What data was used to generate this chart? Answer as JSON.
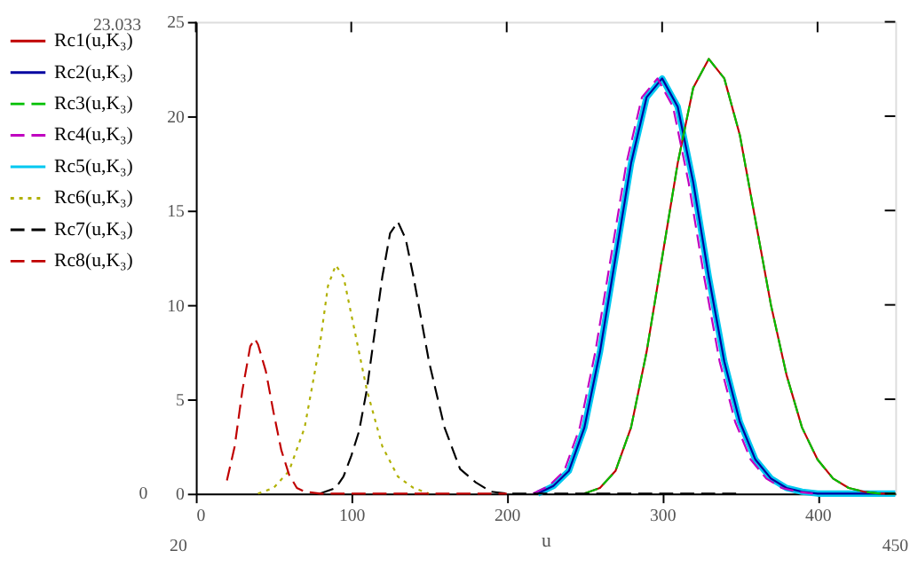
{
  "chart_data": {
    "type": "line",
    "xlabel": "u",
    "xlim": [
      0,
      450
    ],
    "xticks": [
      0,
      100,
      200,
      300,
      400
    ],
    "ylim": [
      0,
      25
    ],
    "yticks": [
      0,
      5,
      10,
      15,
      20,
      25
    ],
    "grid": false,
    "legend": "left",
    "marker": "none",
    "annotations": [
      "23.033",
      "0",
      "20",
      "450"
    ],
    "series": [
      {
        "name": "Rc1(u,K₃)",
        "color": "#c00000",
        "line_style": "solid",
        "x": [
          250,
          260,
          270,
          280,
          290,
          300,
          310,
          320,
          330,
          340,
          350,
          360,
          370,
          380,
          390,
          400,
          410,
          420,
          430,
          440,
          450
        ],
        "values": [
          0,
          0.3,
          1.2,
          3.5,
          7.5,
          12.5,
          17.5,
          21.5,
          23.033,
          22,
          19,
          14.5,
          10,
          6.3,
          3.5,
          1.8,
          0.8,
          0.3,
          0.1,
          0,
          0
        ]
      },
      {
        "name": "Rc2(u,K₃)",
        "color": "#0000a0",
        "line_style": "solid",
        "x": [
          220,
          230,
          240,
          250,
          260,
          270,
          280,
          290,
          300,
          310,
          320,
          330,
          340,
          350,
          360,
          370,
          380,
          390,
          400,
          450
        ],
        "values": [
          0,
          0.4,
          1.2,
          3.5,
          7.5,
          12.5,
          17.5,
          21,
          22,
          20.5,
          16.5,
          11.5,
          7,
          3.8,
          1.8,
          0.8,
          0.3,
          0.1,
          0,
          0
        ]
      },
      {
        "name": "Rc3(u,K₃)",
        "color": "#00c000",
        "line_style": "dashed",
        "x": [
          250,
          260,
          270,
          280,
          290,
          300,
          310,
          320,
          330,
          340,
          350,
          360,
          370,
          380,
          390,
          400,
          410,
          420,
          430,
          440,
          450
        ],
        "values": [
          0,
          0.3,
          1.2,
          3.5,
          7.5,
          12.5,
          17.5,
          21.5,
          23.033,
          22,
          19,
          14.5,
          10,
          6.3,
          3.5,
          1.8,
          0.8,
          0.3,
          0.1,
          0,
          0
        ]
      },
      {
        "name": "Rc4(u,K₃)",
        "color": "#c000c0",
        "line_style": "dashed",
        "x": [
          217,
          227,
          237,
          247,
          257,
          267,
          277,
          287,
          297,
          307,
          317,
          327,
          337,
          347,
          357,
          367,
          377,
          387,
          397
        ],
        "values": [
          0,
          0.4,
          1.2,
          3.5,
          7.5,
          12.5,
          17.5,
          21,
          22,
          20.5,
          16.5,
          11.5,
          7,
          3.8,
          1.8,
          0.8,
          0.3,
          0.1,
          0
        ]
      },
      {
        "name": "Rc5(u,K₃)",
        "color": "#00c8f0",
        "line_style": "solid",
        "x": [
          220,
          230,
          240,
          250,
          260,
          270,
          280,
          290,
          300,
          310,
          320,
          330,
          340,
          350,
          360,
          370,
          380,
          390,
          400,
          450
        ],
        "values": [
          0,
          0.4,
          1.2,
          3.5,
          7.5,
          12.5,
          17.5,
          21,
          22,
          20.5,
          16.5,
          11.5,
          7,
          3.8,
          1.8,
          0.8,
          0.3,
          0.1,
          0,
          0
        ]
      },
      {
        "name": "Rc6(u,K₃)",
        "color": "#b0b000",
        "line_style": "dotted",
        "x": [
          40,
          50,
          60,
          70,
          80,
          85,
          90,
          95,
          100,
          110,
          120,
          130,
          140,
          150
        ],
        "values": [
          0,
          0.3,
          1.2,
          3.5,
          8,
          11,
          12.1,
          11.5,
          9.5,
          5.5,
          2.5,
          0.9,
          0.3,
          0
        ]
      },
      {
        "name": "Rc7(u,K₃)",
        "color": "#000000",
        "line_style": "dashed",
        "x": [
          80,
          90,
          95,
          100,
          105,
          110,
          115,
          120,
          125,
          130,
          135,
          140,
          150,
          160,
          170,
          180,
          190,
          200,
          350
        ],
        "values": [
          0,
          0.3,
          0.9,
          2,
          3.3,
          5.5,
          8.5,
          11.5,
          13.8,
          14.4,
          13.5,
          11.5,
          7,
          3.5,
          1.3,
          0.6,
          0.1,
          0,
          0
        ]
      },
      {
        "name": "Rc8(u,K₃)",
        "color": "#c00000",
        "line_style": "dashed",
        "x": [
          20,
          25,
          30,
          35,
          38,
          40,
          45,
          50,
          55,
          60,
          65,
          70,
          80,
          200
        ],
        "values": [
          0.7,
          2.5,
          5.5,
          7.8,
          8.2,
          7.9,
          6.5,
          4.3,
          2.3,
          1.0,
          0.3,
          0.1,
          0,
          0
        ]
      }
    ]
  }
}
